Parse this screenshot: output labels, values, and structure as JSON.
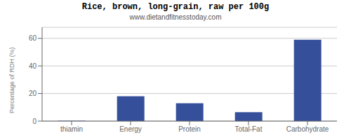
{
  "chart_data": {
    "type": "bar",
    "title": "Rice, brown, long-grain, raw per 100g",
    "subtitle": "www.dietandfitnesstoday.com",
    "ylabel": "Percentage of RDH (%)",
    "categories": [
      "thiamin",
      "Energy",
      "Protein",
      "Total-Fat",
      "Carbohydrate"
    ],
    "values": [
      0.2,
      18.0,
      13.0,
      6.5,
      59.0
    ],
    "color": "#364f9b",
    "ylim": [
      0,
      68
    ],
    "yticks": [
      0,
      20,
      40,
      60
    ],
    "grid": true
  }
}
